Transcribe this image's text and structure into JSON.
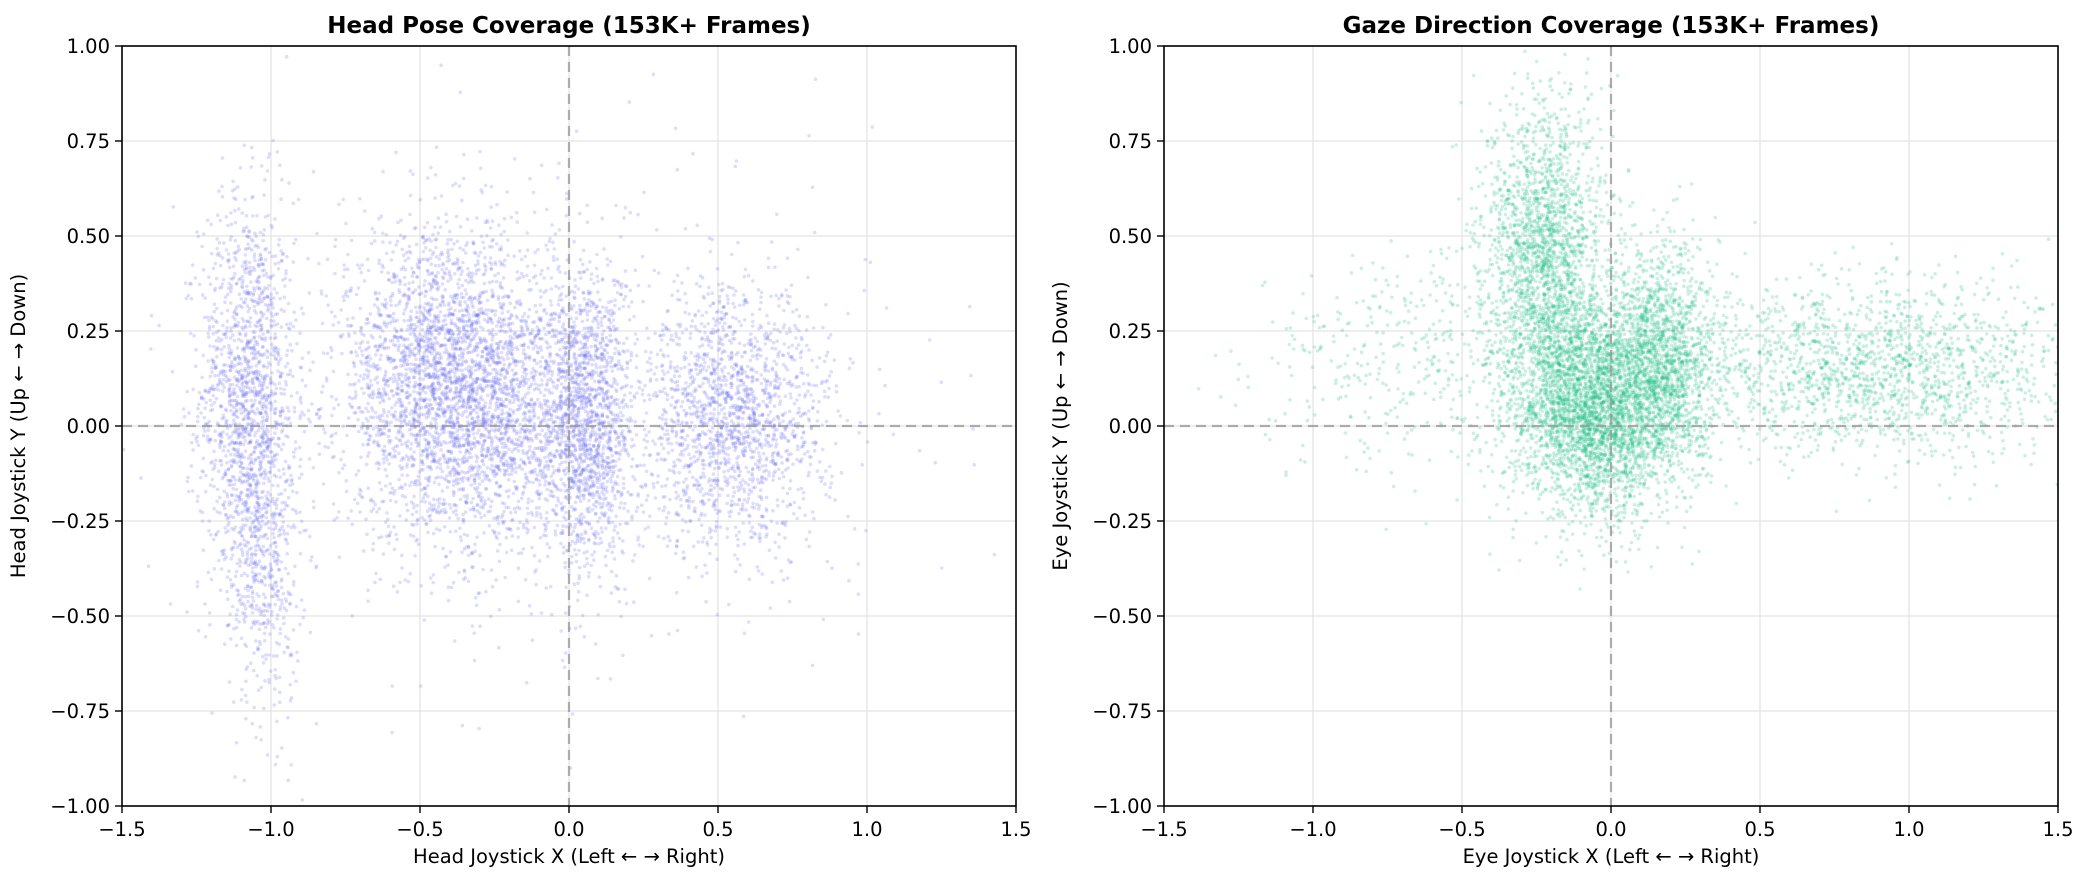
{
  "chart_data": [
    {
      "type": "scatter",
      "title": "Head Pose Coverage (153K+ Frames)",
      "xlabel": "Head Joystick X (Left ← → Right)",
      "ylabel": "Head Joystick Y (Up ← → Down)",
      "xlim": [
        -1.5,
        1.5
      ],
      "ylim": [
        -1.0,
        1.0
      ],
      "grid": true,
      "reference_lines": {
        "x": 0,
        "y": 0,
        "style": "dashed"
      },
      "x_ticks": [
        "−1.5",
        "−1.0",
        "−0.5",
        "0.0",
        "0.5",
        "1.0",
        "1.5"
      ],
      "y_ticks": [
        "−1.00",
        "−0.75",
        "−0.50",
        "−0.25",
        "0.00",
        "0.25",
        "0.50",
        "0.75",
        "1.00"
      ],
      "color": "#6366f1",
      "point_count": "153K+",
      "clusters": [
        {
          "center": [
            -1.08,
            0.08
          ],
          "spread": [
            0.08,
            0.26
          ],
          "weight": 0.16
        },
        {
          "center": [
            -1.02,
            -0.35
          ],
          "spread": [
            0.06,
            0.22
          ],
          "weight": 0.05
        },
        {
          "center": [
            -0.42,
            0.12
          ],
          "spread": [
            0.18,
            0.2
          ],
          "weight": 0.3
        },
        {
          "center": [
            -0.22,
            0.02
          ],
          "spread": [
            0.14,
            0.18
          ],
          "weight": 0.1
        },
        {
          "center": [
            0.06,
            0.02
          ],
          "spread": [
            0.08,
            0.2
          ],
          "weight": 0.17
        },
        {
          "center": [
            0.55,
            0.02
          ],
          "spread": [
            0.16,
            0.17
          ],
          "weight": 0.19
        },
        {
          "center": [
            0.0,
            0.0
          ],
          "spread": [
            0.7,
            0.4
          ],
          "weight": 0.03
        }
      ]
    },
    {
      "type": "scatter",
      "title": "Gaze Direction Coverage (153K+ Frames)",
      "xlabel": "Eye Joystick X (Left ← → Right)",
      "ylabel": "Eye Joystick Y (Up ← → Down)",
      "xlim": [
        -1.5,
        1.5
      ],
      "ylim": [
        -1.0,
        1.0
      ],
      "grid": true,
      "reference_lines": {
        "x": 0,
        "y": 0,
        "style": "dashed"
      },
      "x_ticks": [
        "−1.5",
        "−1.0",
        "−0.5",
        "0.0",
        "0.5",
        "1.0",
        "1.5"
      ],
      "y_ticks": [
        "−1.00",
        "−0.75",
        "−0.50",
        "−0.25",
        "0.00",
        "0.25",
        "0.50",
        "0.75",
        "1.00"
      ],
      "color": "#10b981",
      "point_count": "153K+",
      "clusters": [
        {
          "center": [
            -0.22,
            0.45
          ],
          "spread": [
            0.1,
            0.2
          ],
          "weight": 0.22
        },
        {
          "center": [
            -0.05,
            0.05
          ],
          "spread": [
            0.14,
            0.14
          ],
          "weight": 0.38
        },
        {
          "center": [
            0.18,
            0.18
          ],
          "spread": [
            0.09,
            0.15
          ],
          "weight": 0.15
        },
        {
          "center": [
            0.85,
            0.15
          ],
          "spread": [
            0.35,
            0.12
          ],
          "weight": 0.2
        },
        {
          "center": [
            -0.6,
            0.15
          ],
          "spread": [
            0.3,
            0.15
          ],
          "weight": 0.05
        }
      ]
    }
  ]
}
